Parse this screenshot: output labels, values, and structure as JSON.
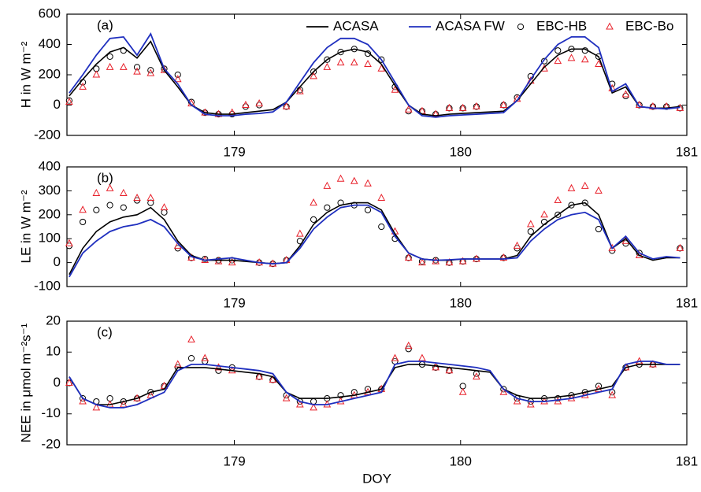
{
  "chart_data": [
    {
      "type": "line",
      "panel_label": "(a)",
      "ylabel": "H in W m⁻²",
      "legend": "top-right",
      "xlim": [
        178.26,
        181
      ],
      "xticks": [
        179,
        180,
        181
      ],
      "ylim": [
        -200,
        600
      ],
      "yticks": [
        -200,
        0,
        200,
        400,
        600
      ],
      "x": [
        178.27,
        178.33,
        178.39,
        178.45,
        178.51,
        178.57,
        178.63,
        178.69,
        178.75,
        178.81,
        178.87,
        178.93,
        178.99,
        179.05,
        179.11,
        179.17,
        179.23,
        179.29,
        179.35,
        179.41,
        179.47,
        179.53,
        179.59,
        179.65,
        179.71,
        179.77,
        179.83,
        179.89,
        179.95,
        180.01,
        180.07,
        180.13,
        180.19,
        180.25,
        180.31,
        180.37,
        180.43,
        180.49,
        180.55,
        180.61,
        180.67,
        180.73,
        180.79,
        180.85,
        180.91,
        180.97
      ],
      "series": [
        {
          "name": "ACASA",
          "color": "#000000",
          "marker": "line",
          "values": [
            60,
            170,
            270,
            350,
            380,
            310,
            420,
            230,
            120,
            0,
            -50,
            -60,
            -60,
            -50,
            -40,
            -30,
            20,
            120,
            220,
            300,
            350,
            370,
            350,
            270,
            130,
            0,
            -60,
            -70,
            -60,
            -55,
            -50,
            -45,
            -40,
            30,
            140,
            250,
            330,
            370,
            370,
            320,
            80,
            120,
            -10,
            -20,
            -20,
            -10
          ]
        },
        {
          "name": "ACASA FW",
          "color": "#1f2fbf",
          "marker": "line",
          "values": [
            80,
            200,
            330,
            440,
            450,
            330,
            470,
            240,
            140,
            0,
            -60,
            -70,
            -70,
            -60,
            -55,
            -45,
            20,
            150,
            280,
            380,
            440,
            440,
            400,
            300,
            150,
            0,
            -70,
            -80,
            -70,
            -65,
            -60,
            -55,
            -50,
            30,
            170,
            300,
            400,
            450,
            450,
            380,
            90,
            140,
            -10,
            -20,
            -25,
            -15
          ]
        },
        {
          "name": "EBC-HB",
          "color": "#000000",
          "marker": "circle",
          "values": [
            30,
            150,
            240,
            320,
            360,
            250,
            230,
            240,
            200,
            20,
            -50,
            -60,
            -60,
            -10,
            0,
            null,
            -10,
            100,
            220,
            300,
            350,
            370,
            340,
            300,
            120,
            -40,
            -40,
            -60,
            -20,
            -20,
            -10,
            null,
            0,
            50,
            190,
            290,
            360,
            370,
            360,
            320,
            140,
            60,
            0,
            -10,
            -10,
            -20
          ]
        },
        {
          "name": "EBC-Bo",
          "color": "#e8202a",
          "marker": "triangle",
          "values": [
            20,
            120,
            200,
            250,
            250,
            220,
            210,
            230,
            170,
            10,
            -50,
            -60,
            -50,
            0,
            10,
            null,
            -10,
            90,
            190,
            250,
            280,
            280,
            270,
            240,
            100,
            -30,
            -40,
            -60,
            -20,
            -20,
            -10,
            null,
            0,
            40,
            160,
            240,
            290,
            310,
            300,
            270,
            110,
            70,
            0,
            -10,
            -10,
            -20
          ]
        }
      ]
    },
    {
      "type": "line",
      "panel_label": "(b)",
      "ylabel": "LE in W m⁻²",
      "xlim": [
        178.26,
        181
      ],
      "xticks": [
        179,
        180,
        181
      ],
      "ylim": [
        -100,
        400
      ],
      "yticks": [
        -100,
        0,
        100,
        200,
        300,
        400
      ],
      "x": [
        178.27,
        178.33,
        178.39,
        178.45,
        178.51,
        178.57,
        178.63,
        178.69,
        178.75,
        178.81,
        178.87,
        178.93,
        178.99,
        179.05,
        179.11,
        179.17,
        179.23,
        179.29,
        179.35,
        179.41,
        179.47,
        179.53,
        179.59,
        179.65,
        179.71,
        179.77,
        179.83,
        179.89,
        179.95,
        180.01,
        180.07,
        180.13,
        180.19,
        180.25,
        180.31,
        180.37,
        180.43,
        180.49,
        180.55,
        180.61,
        180.67,
        180.73,
        180.79,
        180.85,
        180.91,
        180.97
      ],
      "series": [
        {
          "color": "#000000",
          "marker": "line",
          "values": [
            -50,
            60,
            130,
            170,
            190,
            200,
            230,
            180,
            90,
            30,
            10,
            10,
            10,
            5,
            0,
            -5,
            0,
            70,
            160,
            210,
            240,
            250,
            250,
            220,
            120,
            40,
            15,
            10,
            10,
            15,
            15,
            15,
            15,
            30,
            110,
            160,
            200,
            240,
            250,
            200,
            60,
            100,
            30,
            10,
            20,
            20
          ]
        },
        {
          "color": "#1f2fbf",
          "marker": "line",
          "values": [
            -60,
            40,
            90,
            130,
            150,
            160,
            180,
            150,
            80,
            25,
            10,
            15,
            20,
            10,
            0,
            -5,
            0,
            60,
            140,
            190,
            230,
            240,
            240,
            210,
            110,
            40,
            15,
            10,
            12,
            15,
            15,
            15,
            15,
            20,
            90,
            140,
            180,
            200,
            210,
            180,
            60,
            110,
            40,
            15,
            25,
            20
          ]
        },
        {
          "color": "#000000",
          "marker": "circle",
          "values": [
            70,
            170,
            220,
            240,
            230,
            260,
            250,
            210,
            60,
            20,
            15,
            10,
            10,
            null,
            0,
            -5,
            10,
            90,
            180,
            230,
            250,
            240,
            220,
            150,
            100,
            20,
            5,
            10,
            0,
            5,
            15,
            null,
            20,
            60,
            130,
            170,
            200,
            240,
            250,
            140,
            50,
            80,
            40,
            null,
            null,
            60
          ]
        },
        {
          "color": "#e8202a",
          "marker": "triangle",
          "values": [
            80,
            220,
            290,
            310,
            290,
            270,
            270,
            230,
            70,
            20,
            10,
            5,
            0,
            null,
            0,
            -5,
            10,
            120,
            250,
            320,
            350,
            340,
            330,
            270,
            130,
            20,
            0,
            5,
            0,
            5,
            15,
            null,
            20,
            70,
            160,
            200,
            260,
            310,
            320,
            300,
            60,
            90,
            30,
            null,
            null,
            60
          ]
        }
      ]
    },
    {
      "type": "line",
      "panel_label": "(c)",
      "ylabel": "NEE in μmol m⁻²s⁻¹",
      "xlabel": "DOY",
      "xlim": [
        178.26,
        181
      ],
      "xticks": [
        179,
        180,
        181
      ],
      "ylim": [
        -20,
        20
      ],
      "yticks": [
        -20,
        -10,
        0,
        10,
        20
      ],
      "x": [
        178.27,
        178.33,
        178.39,
        178.45,
        178.51,
        178.57,
        178.63,
        178.69,
        178.75,
        178.81,
        178.87,
        178.93,
        178.99,
        179.05,
        179.11,
        179.17,
        179.23,
        179.29,
        179.35,
        179.41,
        179.47,
        179.53,
        179.59,
        179.65,
        179.71,
        179.77,
        179.83,
        179.89,
        179.95,
        180.01,
        180.07,
        180.13,
        180.19,
        180.25,
        180.31,
        180.37,
        180.43,
        180.49,
        180.55,
        180.61,
        180.67,
        180.73,
        180.79,
        180.85,
        180.91,
        180.97
      ],
      "series": [
        {
          "color": "#000000",
          "marker": "line",
          "values": [
            2,
            -5,
            -7,
            -7,
            -6,
            -5,
            -3,
            -2,
            5,
            5,
            5,
            4.5,
            4,
            3.5,
            3,
            2,
            -3,
            -5,
            -5,
            -5,
            -4.5,
            -4,
            -3,
            -2,
            5,
            6,
            6,
            5.5,
            5,
            4.5,
            4,
            3.5,
            -2,
            -4,
            -5,
            -5,
            -4.5,
            -4,
            -3,
            -2,
            -1,
            5,
            6,
            6,
            6,
            6
          ]
        },
        {
          "color": "#1f2fbf",
          "marker": "line",
          "values": [
            2,
            -5,
            -7,
            -8,
            -8,
            -7,
            -5,
            -3,
            4,
            6,
            6,
            5.5,
            5,
            4.5,
            4,
            3,
            -3,
            -6,
            -7,
            -7,
            -6,
            -5,
            -4,
            -3,
            6,
            7,
            7,
            6.5,
            6,
            5.5,
            5,
            4,
            -2,
            -5,
            -6,
            -6,
            -5.5,
            -5,
            -4,
            -3,
            -2,
            6,
            7,
            7,
            6,
            6
          ]
        },
        {
          "color": "#000000",
          "marker": "circle",
          "values": [
            0,
            -5,
            -6,
            -5,
            -6,
            -5,
            -3,
            -1,
            5,
            8,
            7,
            4,
            5,
            null,
            2,
            1,
            -4,
            -6,
            -6,
            -5,
            -4,
            -3,
            -2,
            -2,
            7,
            11,
            6,
            5,
            4,
            -1,
            3,
            null,
            -2,
            -5,
            -6,
            -5,
            -5,
            -4,
            -3,
            -1,
            -3,
            5,
            6,
            6,
            null,
            null
          ]
        },
        {
          "color": "#e8202a",
          "marker": "triangle",
          "values": [
            0,
            -6,
            -8,
            -7,
            -7,
            -5,
            -4,
            -1,
            6,
            14,
            8,
            5,
            4,
            null,
            2,
            1,
            -5,
            -7,
            -8,
            -7,
            -6,
            -4,
            -3,
            -2,
            8,
            12,
            8,
            5,
            4,
            -3,
            2,
            null,
            -3,
            -6,
            -7,
            -6,
            -6,
            -5,
            -4,
            -2,
            -4,
            5,
            7,
            6,
            null,
            null
          ]
        }
      ]
    }
  ]
}
